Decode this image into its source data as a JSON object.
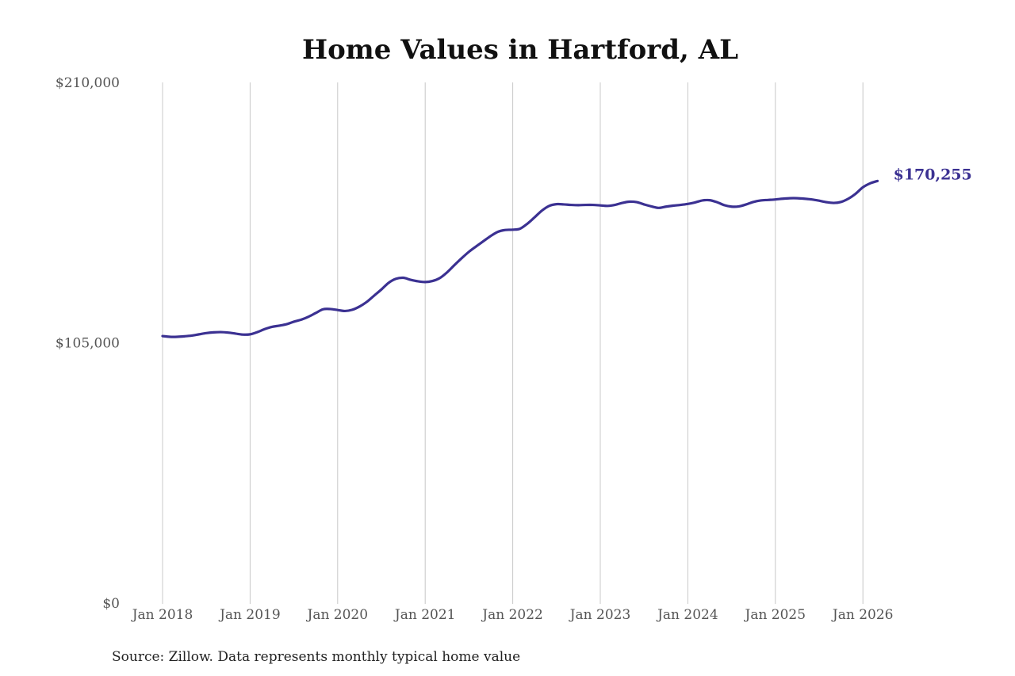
{
  "chart_data": {
    "type": "line",
    "title": "Home Values in Hartford, AL",
    "xlabel": "",
    "ylabel": "",
    "ylim": [
      0,
      210000
    ],
    "yticks": [
      {
        "value": 0,
        "label": "$0"
      },
      {
        "value": 105000,
        "label": "$105,000"
      },
      {
        "value": 210000,
        "label": "$210,000"
      }
    ],
    "xticks": [
      {
        "value": "2018-01",
        "label": "Jan 2018"
      },
      {
        "value": "2019-01",
        "label": "Jan 2019"
      },
      {
        "value": "2020-01",
        "label": "Jan 2020"
      },
      {
        "value": "2021-01",
        "label": "Jan 2021"
      },
      {
        "value": "2022-01",
        "label": "Jan 2022"
      },
      {
        "value": "2023-01",
        "label": "Jan 2023"
      },
      {
        "value": "2024-01",
        "label": "Jan 2024"
      },
      {
        "value": "2025-01",
        "label": "Jan 2025"
      },
      {
        "value": "2026-01",
        "label": "Jan 2026"
      }
    ],
    "grid": {
      "vertical": true,
      "horizontal": false
    },
    "line_color": "#3b3192",
    "series": [
      {
        "x": [
          "2018-01",
          "2018-02",
          "2018-03",
          "2018-04",
          "2018-05",
          "2018-06",
          "2018-07",
          "2018-08",
          "2018-09",
          "2018-10",
          "2018-11",
          "2018-12",
          "2019-01",
          "2019-02",
          "2019-03",
          "2019-04",
          "2019-05",
          "2019-06",
          "2019-07",
          "2019-08",
          "2019-09",
          "2019-10",
          "2019-11",
          "2019-12",
          "2020-01",
          "2020-02",
          "2020-03",
          "2020-04",
          "2020-05",
          "2020-06",
          "2020-07",
          "2020-08",
          "2020-09",
          "2020-10",
          "2020-11",
          "2020-12",
          "2021-01",
          "2021-02",
          "2021-03",
          "2021-04",
          "2021-05",
          "2021-06",
          "2021-07",
          "2021-08",
          "2021-09",
          "2021-10",
          "2021-11",
          "2021-12",
          "2022-01",
          "2022-02",
          "2022-03",
          "2022-04",
          "2022-05",
          "2022-06",
          "2022-07",
          "2022-08",
          "2022-09",
          "2022-10",
          "2022-11",
          "2022-12",
          "2023-01",
          "2023-02",
          "2023-03",
          "2023-04",
          "2023-05",
          "2023-06",
          "2023-07",
          "2023-08",
          "2023-09",
          "2023-10",
          "2023-11",
          "2023-12",
          "2024-01",
          "2024-02",
          "2024-03",
          "2024-04",
          "2024-05",
          "2024-06",
          "2024-07",
          "2024-08",
          "2024-09",
          "2024-10",
          "2024-11",
          "2024-12",
          "2025-01",
          "2025-02",
          "2025-03",
          "2025-04",
          "2025-05",
          "2025-06",
          "2025-07",
          "2025-08",
          "2025-09",
          "2025-10",
          "2025-11",
          "2025-12",
          "2026-01",
          "2026-02",
          "2026-03"
        ],
        "values": [
          107700,
          107400,
          107400,
          107600,
          107900,
          108400,
          108900,
          109200,
          109300,
          109100,
          108700,
          108300,
          108400,
          109300,
          110500,
          111400,
          111900,
          112500,
          113500,
          114300,
          115500,
          117000,
          118500,
          118600,
          118200,
          117800,
          118300,
          119600,
          121500,
          124000,
          126500,
          129200,
          130800,
          131200,
          130400,
          129800,
          129500,
          129900,
          131100,
          133400,
          136300,
          139100,
          141700,
          143900,
          146000,
          148100,
          149800,
          150500,
          150600,
          151000,
          153000,
          155600,
          158300,
          160200,
          160900,
          160800,
          160600,
          160500,
          160600,
          160600,
          160400,
          160200,
          160600,
          161400,
          161900,
          161700,
          160800,
          160000,
          159400,
          159900,
          160300,
          160600,
          161000,
          161600,
          162400,
          162500,
          161700,
          160500,
          159900,
          160000,
          160800,
          161800,
          162400,
          162600,
          162800,
          163100,
          163300,
          163300,
          163100,
          162800,
          162300,
          161700,
          161400,
          161800,
          163100,
          165100,
          167700,
          169300,
          170255
        ]
      }
    ],
    "end_label": "$170,255"
  },
  "source_note": "Source: Zillow. Data represents monthly typical home value"
}
